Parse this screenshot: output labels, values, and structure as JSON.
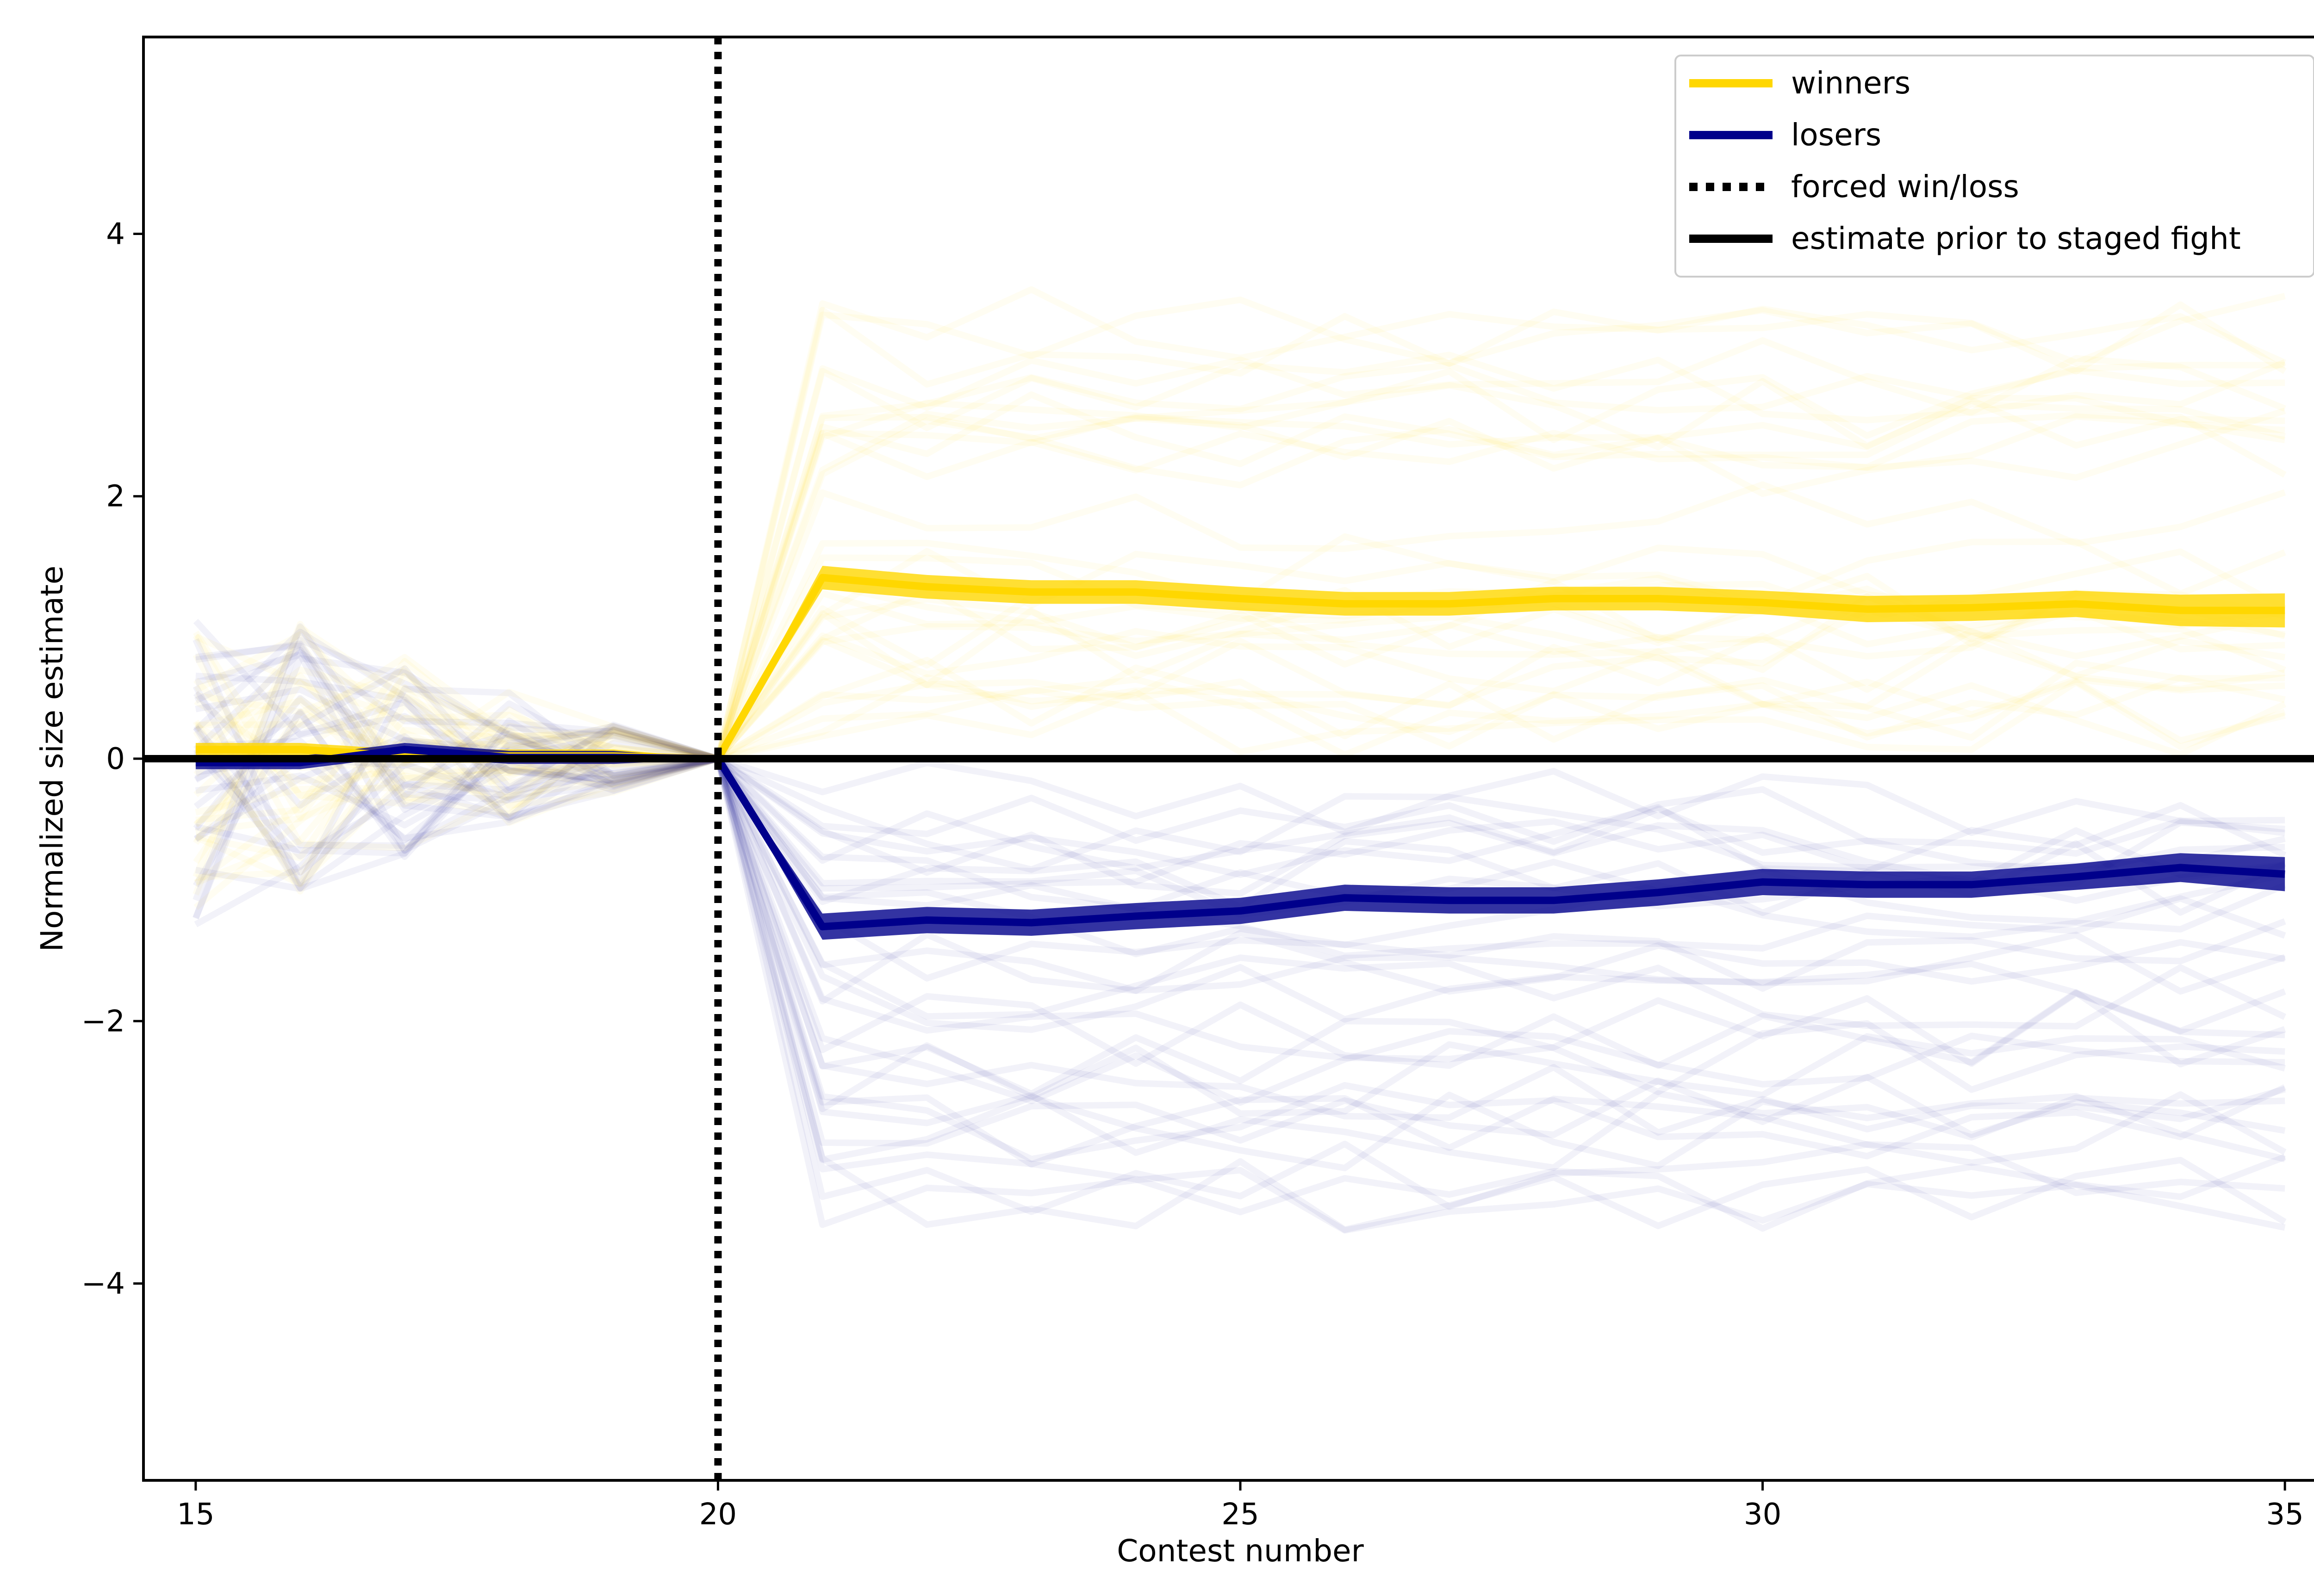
{
  "chart_data": {
    "type": "line",
    "title": "",
    "xlabel": "Contest number",
    "ylabel": "Normalized size estimate",
    "xlim": [
      14.5,
      35.5
    ],
    "ylim": [
      -5.5,
      5.5
    ],
    "x_ticks": [
      15,
      20,
      25,
      30,
      35
    ],
    "x_tick_labels": [
      "15",
      "20",
      "25",
      "30",
      "35"
    ],
    "y_ticks": [
      -4,
      -2,
      0,
      2,
      4
    ],
    "y_tick_labels": [
      "−4",
      "−2",
      "0",
      "2",
      "4"
    ],
    "grid": false,
    "legend_position": "top-right",
    "x": [
      15,
      16,
      17,
      18,
      19,
      20,
      21,
      22,
      23,
      24,
      25,
      26,
      27,
      28,
      29,
      30,
      31,
      32,
      33,
      34,
      35
    ],
    "series": [
      {
        "name": "winners",
        "color": "#FFD700",
        "values": [
          0.07,
          0.07,
          0.02,
          0.02,
          0.02,
          0.0,
          1.38,
          1.31,
          1.27,
          1.27,
          1.22,
          1.18,
          1.18,
          1.22,
          1.22,
          1.19,
          1.14,
          1.15,
          1.18,
          1.13,
          1.13
        ],
        "band": [
          0.05,
          0.05,
          0.05,
          0.05,
          0.05,
          0.0,
          0.09,
          0.09,
          0.09,
          0.09,
          0.09,
          0.09,
          0.09,
          0.09,
          0.09,
          0.09,
          0.1,
          0.1,
          0.1,
          0.12,
          0.13
        ]
      },
      {
        "name": "losers",
        "color": "#00008B",
        "values": [
          -0.03,
          -0.03,
          0.07,
          0.01,
          0.01,
          0.0,
          -1.28,
          -1.23,
          -1.25,
          -1.2,
          -1.16,
          -1.06,
          -1.08,
          -1.08,
          -1.02,
          -0.94,
          -0.96,
          -0.96,
          -0.9,
          -0.83,
          -0.88
        ],
        "band": [
          0.05,
          0.05,
          0.05,
          0.05,
          0.05,
          0.0,
          0.1,
          0.1,
          0.1,
          0.1,
          0.1,
          0.1,
          0.1,
          0.1,
          0.1,
          0.1,
          0.1,
          0.1,
          0.1,
          0.11,
          0.13
        ]
      }
    ],
    "reference_lines": [
      {
        "name": "forced win/loss",
        "orientation": "vertical",
        "value": 20,
        "style": "dotted",
        "color": "#000000"
      },
      {
        "name": "estimate prior to staged fight",
        "orientation": "horizontal",
        "value": 0,
        "style": "solid",
        "color": "#000000"
      }
    ],
    "legend": [
      {
        "label": "winners",
        "color": "#FFD700",
        "style": "solid"
      },
      {
        "label": "losers",
        "color": "#00008B",
        "style": "solid"
      },
      {
        "label": "forced win/loss",
        "color": "#000000",
        "style": "dotted"
      },
      {
        "label": "estimate prior to staged fight",
        "color": "#000000",
        "style": "solid"
      }
    ],
    "background_traces": {
      "description_colors": [
        "#FFD700",
        "#00008B"
      ]
    }
  }
}
